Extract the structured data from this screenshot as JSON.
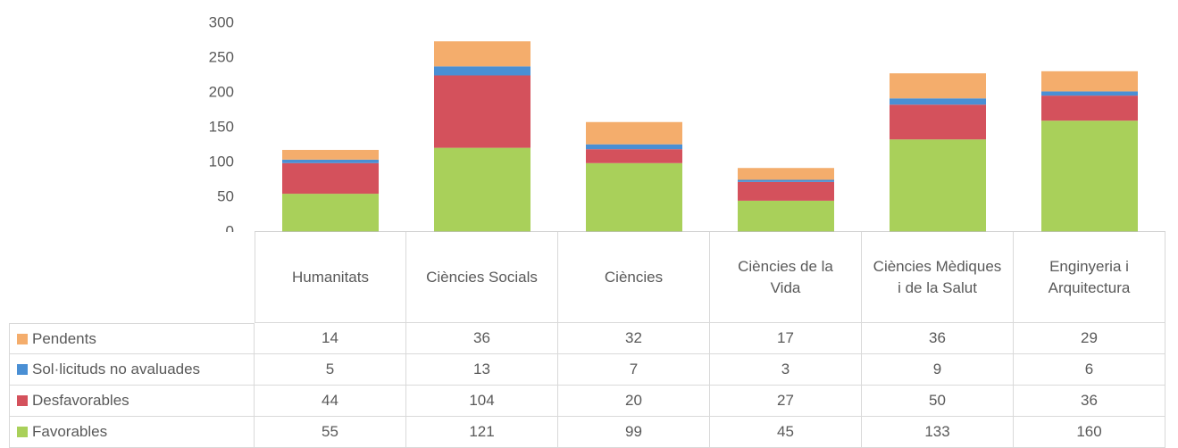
{
  "chart_data": {
    "type": "stacked_bar",
    "categories": [
      "Humanitats",
      "Ciències Socials",
      "Ciències",
      "Ciències de la Vida",
      "Ciències Mèdiques i de la Salut",
      "Enginyeria i Arquitectura"
    ],
    "series": [
      {
        "name": "Pendents",
        "color": "#f4ad6c",
        "values": [
          14,
          36,
          32,
          17,
          36,
          29
        ]
      },
      {
        "name": "Sol·licituds no avaluades",
        "color": "#4a8fd4",
        "values": [
          5,
          13,
          7,
          3,
          9,
          6
        ]
      },
      {
        "name": "Desfavorables",
        "color": "#d4515c",
        "values": [
          44,
          104,
          20,
          27,
          50,
          36
        ]
      },
      {
        "name": "Favorables",
        "color": "#a9d05a",
        "values": [
          55,
          121,
          99,
          45,
          133,
          160
        ]
      }
    ],
    "ylim": [
      0,
      300
    ],
    "yticks": [
      0,
      50,
      100,
      150,
      200,
      250,
      300
    ],
    "grid": false
  }
}
